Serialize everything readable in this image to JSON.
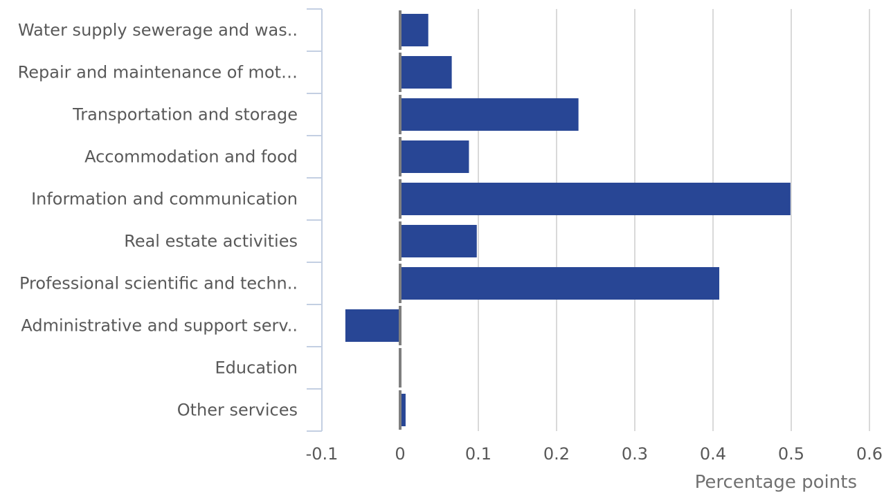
{
  "chart_data": {
    "type": "bar",
    "orientation": "horizontal",
    "categories": [
      "Water supply sewerage and was..",
      "Repair and maintenance of mot…",
      "Transportation and storage",
      "Accommodation and food",
      "Information and communication",
      "Real estate activities",
      "Professional scientific and techn..",
      "Administrative and support serv..",
      "Education",
      "Other services"
    ],
    "values": [
      0.036,
      0.066,
      0.228,
      0.088,
      0.499,
      0.098,
      0.408,
      -0.07,
      0.0,
      0.007
    ],
    "xlabel": "Percentage points",
    "xlim": [
      -0.1,
      0.6
    ],
    "xticks": [
      -0.1,
      0,
      0.1,
      0.2,
      0.3,
      0.4,
      0.5,
      0.6
    ],
    "xtick_labels": [
      "-0.1",
      "0",
      "0.1",
      "0.2",
      "0.3",
      "0.4",
      "0.5",
      "0.6"
    ],
    "grid": "vertical",
    "legend": "none",
    "colors": {
      "bar": "#284695",
      "grid": "#d9d9d9",
      "axis": "#c3cfe2",
      "zero_line": "#7f7f7f",
      "text": "#595959"
    }
  }
}
